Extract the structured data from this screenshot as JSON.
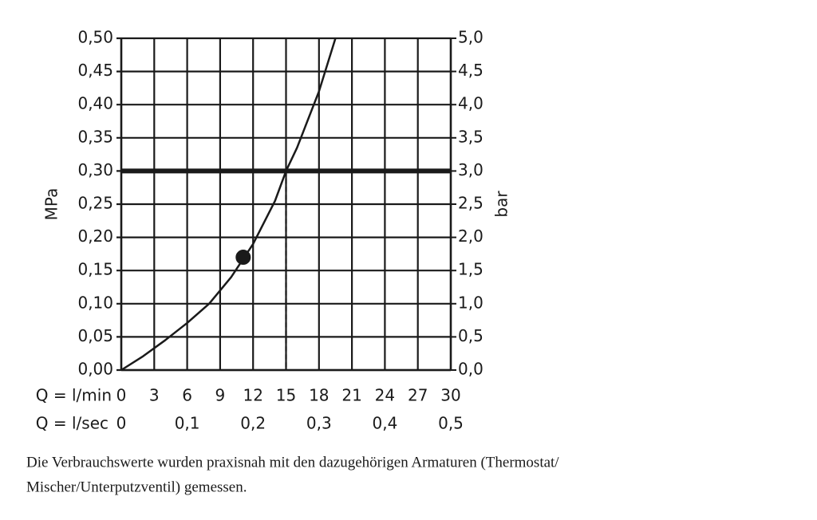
{
  "chart_data": {
    "type": "line",
    "ylabel": "MPa",
    "y2label": "bar",
    "xlabel": "Q = l/min",
    "x2label": "Q = l/sec",
    "xlim": [
      0,
      30
    ],
    "xticks": [
      0,
      3,
      6,
      9,
      12,
      15,
      18,
      21,
      24,
      27,
      30
    ],
    "x2lim": [
      0,
      0.5
    ],
    "x2ticks": [
      0,
      {
        "value": 0.1,
        "label": "0,1"
      },
      {
        "value": 0.2,
        "label": "0,2"
      },
      {
        "value": 0.3,
        "label": "0,3"
      },
      {
        "value": 0.4,
        "label": "0,4"
      },
      {
        "value": 0.5,
        "label": "0,5"
      }
    ],
    "ylim": [
      0,
      0.5
    ],
    "yticks": [
      {
        "value": 0,
        "label": "0,00"
      },
      {
        "value": 0.05,
        "label": "0,05"
      },
      {
        "value": 0.1,
        "label": "0,10"
      },
      {
        "value": 0.15,
        "label": "0,15"
      },
      {
        "value": 0.2,
        "label": "0,20"
      },
      {
        "value": 0.25,
        "label": "0,25"
      },
      {
        "value": 0.3,
        "label": "0,30"
      },
      {
        "value": 0.35,
        "label": "0,35"
      },
      {
        "value": 0.4,
        "label": "0,40"
      },
      {
        "value": 0.45,
        "label": "0,45"
      },
      {
        "value": 0.5,
        "label": "0,50"
      }
    ],
    "y2lim": [
      0,
      5
    ],
    "y2ticks": [
      {
        "value": 0,
        "label": "0,0"
      },
      {
        "value": 0.5,
        "label": "0,5"
      },
      {
        "value": 1,
        "label": "1,0"
      },
      {
        "value": 1.5,
        "label": "1,5"
      },
      {
        "value": 2,
        "label": "2,0"
      },
      {
        "value": 2.5,
        "label": "2,5"
      },
      {
        "value": 3,
        "label": "3,0"
      },
      {
        "value": 3.5,
        "label": "3,5"
      },
      {
        "value": 4,
        "label": "4,0"
      },
      {
        "value": 4.5,
        "label": "4,5"
      },
      {
        "value": 5,
        "label": "5,0"
      }
    ],
    "grid": true,
    "series": [
      {
        "color": "#1a1a1a",
        "x": [
          0,
          2,
          4,
          6,
          8,
          10,
          12,
          14,
          15,
          16,
          18,
          19.5
        ],
        "values": [
          0,
          0.021,
          0.045,
          0.071,
          0.1,
          0.14,
          0.19,
          0.255,
          0.3,
          0.335,
          0.42,
          0.5
        ]
      }
    ],
    "hline": 0.3,
    "vline": 15,
    "marker": {
      "x": 11.1,
      "y": 0.17
    },
    "note": [
      "Die Verbrauchswerte wurden praxisnah mit den dazugehörigen Armaturen (Thermostat/",
      "Mischer/Unterputzventil) gemessen."
    ]
  }
}
